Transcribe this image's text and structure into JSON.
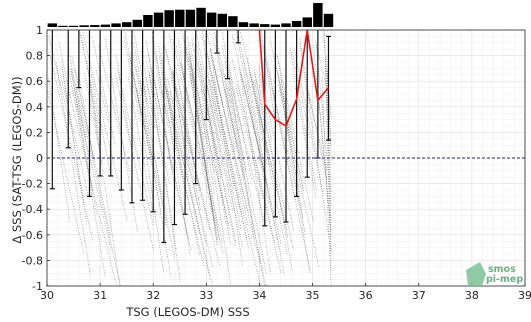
{
  "chart_data": {
    "type": "scatter",
    "title": "",
    "xlabel": "TSG (LEGOS-DM) SSS",
    "ylabel": "Δ SSS (SAT-TSG (LEGOS-DM))",
    "xlim": [
      30,
      39
    ],
    "ylim": [
      -1,
      1
    ],
    "xticks": [
      30,
      31,
      32,
      33,
      34,
      35,
      36,
      37,
      38,
      39
    ],
    "yticks": [
      -1,
      -0.8,
      -0.6,
      -0.4,
      -0.2,
      0,
      0.2,
      0.4,
      0.6,
      0.8,
      1
    ],
    "xtick_labels": [
      "30",
      "31",
      "32",
      "33",
      "34",
      "35",
      "36",
      "37",
      "38",
      "39"
    ],
    "ytick_labels": [
      "-1",
      "-0.8",
      "-0.6",
      "-0.4",
      "-0.2",
      "0",
      "0.2",
      "0.4",
      "0.6",
      "0.8",
      "1"
    ],
    "grid": true,
    "zero_line": {
      "y": 0,
      "style": "dashed",
      "color": "#1a237e"
    },
    "histogram": {
      "bin_width": 0.2,
      "bin_centers": [
        30.1,
        30.3,
        30.5,
        30.7,
        30.9,
        31.1,
        31.3,
        31.5,
        31.7,
        31.9,
        32.1,
        32.3,
        32.5,
        32.7,
        32.9,
        33.1,
        33.3,
        33.5,
        33.7,
        33.9,
        34.1,
        34.3,
        34.5,
        34.7,
        34.9,
        35.1,
        35.3
      ],
      "heights": [
        0.15,
        0.05,
        0.05,
        0.07,
        0.08,
        0.1,
        0.15,
        0.2,
        0.3,
        0.5,
        0.6,
        0.7,
        0.72,
        0.72,
        0.8,
        0.6,
        0.55,
        0.45,
        0.2,
        0.15,
        0.12,
        0.1,
        0.15,
        0.25,
        0.4,
        1.0,
        0.55
      ]
    },
    "error_bars": {
      "color": "#111111",
      "x": [
        30.1,
        30.4,
        30.6,
        30.8,
        31.0,
        31.2,
        31.4,
        31.6,
        31.8,
        32.0,
        32.2,
        32.4,
        32.6,
        32.8,
        33.0,
        33.2,
        33.4,
        33.6,
        34.1,
        34.3,
        34.5,
        34.7,
        34.9,
        35.1,
        35.3
      ],
      "low": [
        -0.24,
        0.08,
        0.55,
        -0.3,
        -0.14,
        -0.14,
        -0.25,
        -0.35,
        -0.33,
        -0.42,
        -0.66,
        -0.52,
        -0.44,
        -0.2,
        0.3,
        0.82,
        0.62,
        0.9,
        -0.53,
        -0.46,
        -0.5,
        -0.3,
        -0.15,
        0.0,
        0.14
      ],
      "high": [
        1,
        1,
        1,
        1,
        1,
        1,
        1,
        1,
        1,
        1,
        1,
        1,
        1,
        1,
        1,
        1,
        1,
        1,
        1,
        1,
        1,
        1,
        1,
        1,
        0.95
      ]
    },
    "median_line": {
      "color": "#e41a1c",
      "x": [
        34.0,
        34.1,
        34.3,
        34.5,
        34.7,
        34.9,
        35.1,
        35.3
      ],
      "y": [
        1.0,
        0.42,
        0.3,
        0.25,
        0.46,
        1.0,
        0.45,
        0.55
      ]
    },
    "scatter_trails": {
      "color": "#555555",
      "note_value_range_x": [
        30.0,
        35.3
      ],
      "note_value_range_y": [
        -1,
        1
      ]
    },
    "colors": {
      "logo": "#6fae86"
    }
  },
  "logo": {
    "line1": "smos",
    "line2": "pi-mep"
  }
}
